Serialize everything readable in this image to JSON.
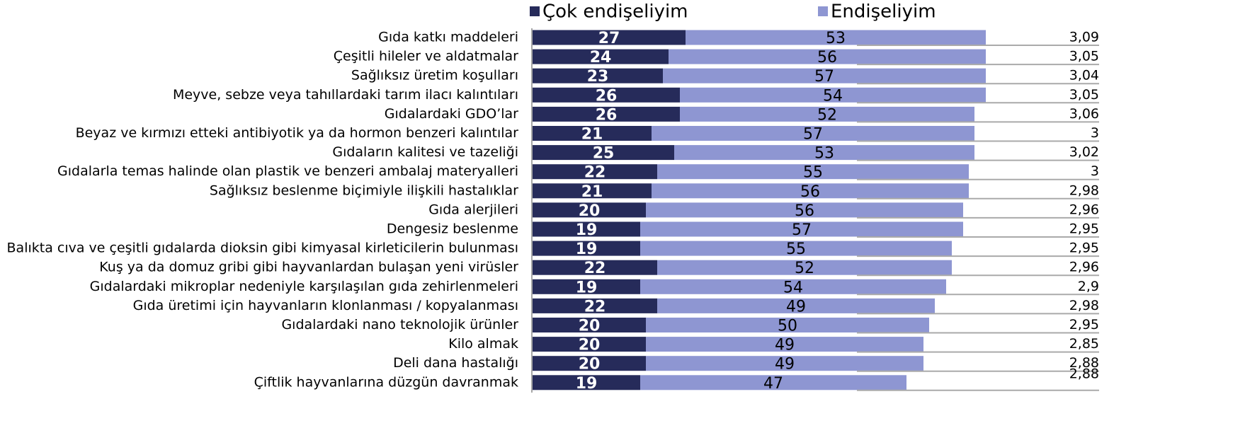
{
  "chart_data": {
    "type": "bar",
    "orientation": "horizontal",
    "stacked": true,
    "categories": [
      "Gıda katkı maddeleri",
      "Çeşitli hileler ve aldatmalar",
      "Sağlıksız üretim koşulları",
      "Meyve, sebze veya tahıllardaki tarım ilacı kalıntıları",
      "Gıdalardaki  GDO’lar",
      "Beyaz ve kırmızı etteki antibiyotik ya da hormon benzeri kalıntılar",
      "Gıdaların kalitesi ve tazeliği",
      "Gıdalarla temas halinde olan plastik ve benzeri ambalaj materyalleri",
      "Sağlıksız beslenme biçimiyle ilişkili hastalıklar",
      "Gıda  alerjileri",
      "Dengesiz beslenme",
      "Balıkta cıva ve çeşitli gıdalarda dioksin gibi kimyasal kirleticilerin bulunması",
      "Kuş ya da domuz gribi gibi hayvanlardan bulaşan yeni virüsler",
      "Gıdalardaki mikroplar nedeniyle karşılaşılan gıda zehirlenmeleri",
      "Gıda üretimi için hayvanların klonlanması / kopyalanması",
      "Gıdalardaki nano teknolojik ürünler",
      "Kilo almak",
      "Deli dana hastalığı",
      "Çiftlik hayvanlarına düzgün davranmak"
    ],
    "series": [
      {
        "name": "Çok endişeliyim",
        "color": "#262b5a",
        "values": [
          27,
          24,
          23,
          26,
          26,
          21,
          25,
          22,
          21,
          20,
          19,
          19,
          22,
          19,
          22,
          20,
          20,
          20,
          19
        ]
      },
      {
        "name": "Endişeliyim",
        "color": "#8e96d2",
        "values": [
          53,
          56,
          57,
          54,
          52,
          57,
          53,
          55,
          56,
          56,
          57,
          55,
          52,
          54,
          49,
          50,
          49,
          49,
          47
        ]
      }
    ],
    "mean_scores": [
      "3,09",
      "3,05",
      "3,04",
      "3,05",
      "3,06",
      "3",
      "3,02",
      "3",
      "2,98",
      "2,96",
      "2,95",
      "2,95",
      "2,96",
      "2,9",
      "2,98",
      "2,95",
      "2,85",
      "2,88",
      "2,88"
    ],
    "xlim": [
      0,
      100
    ],
    "legend": "top"
  }
}
